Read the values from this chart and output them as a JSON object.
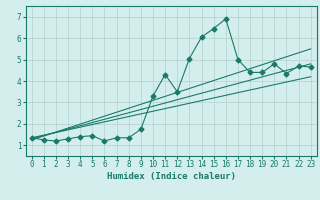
{
  "xlabel": "Humidex (Indice chaleur)",
  "background_color": "#d4eeed",
  "grid_color": "#b2d0cc",
  "line_color": "#1a7a6a",
  "xlim": [
    -0.5,
    23.5
  ],
  "ylim": [
    0.5,
    7.5
  ],
  "xticks": [
    0,
    1,
    2,
    3,
    4,
    5,
    6,
    7,
    8,
    9,
    10,
    11,
    12,
    13,
    14,
    15,
    16,
    17,
    18,
    19,
    20,
    21,
    22,
    23
  ],
  "yticks": [
    1,
    2,
    3,
    4,
    5,
    6,
    7
  ],
  "main_x": [
    0,
    1,
    2,
    3,
    4,
    5,
    6,
    7,
    8,
    9,
    10,
    11,
    12,
    13,
    14,
    15,
    16,
    17,
    18,
    19,
    20,
    21,
    22,
    23
  ],
  "main_y": [
    1.35,
    1.25,
    1.2,
    1.3,
    1.4,
    1.45,
    1.2,
    1.35,
    1.35,
    1.75,
    3.3,
    4.3,
    3.5,
    5.05,
    6.05,
    6.45,
    6.9,
    5.0,
    4.4,
    4.4,
    4.8,
    4.35,
    4.7,
    4.65
  ],
  "line1_x": [
    0,
    23
  ],
  "line1_y": [
    1.25,
    5.5
  ],
  "line2_x": [
    0,
    23
  ],
  "line2_y": [
    1.3,
    4.8
  ],
  "line3_x": [
    0,
    23
  ],
  "line3_y": [
    1.35,
    4.2
  ],
  "marker_size": 2.5,
  "line_width": 0.8,
  "tick_fontsize": 5.5,
  "xlabel_fontsize": 6.5
}
